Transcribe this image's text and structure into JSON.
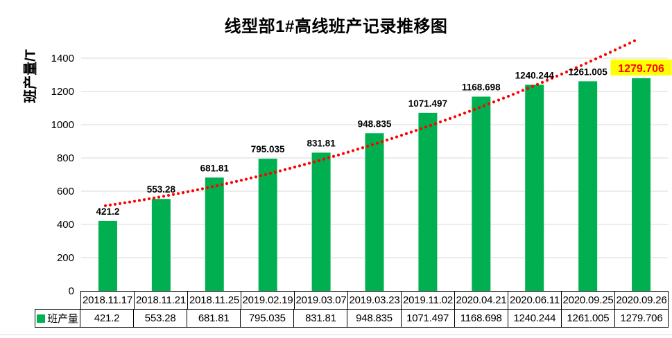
{
  "title": "线型部1#高线班产记录推移图",
  "y_axis_title": "班产量/T",
  "legend": {
    "series_label": "班产量"
  },
  "chart_data": {
    "type": "bar",
    "title": "线型部1#高线班产记录推移图",
    "xlabel": "",
    "ylabel": "班产量/T",
    "ylim": [
      0,
      1400
    ],
    "y_ticks": [
      0,
      200,
      400,
      600,
      800,
      1000,
      1200,
      1400
    ],
    "grid": "horizontal",
    "legend_position": "data-table-left",
    "categories": [
      "2018.11.17",
      "2018.11.21",
      "2018.11.25",
      "2019.02.19",
      "2019.03.07",
      "2019.03.23",
      "2019.11.02",
      "2020.04.21",
      "2020.06.11",
      "2020.09.25",
      "2020.09.26"
    ],
    "series": [
      {
        "name": "班产量",
        "color": "#00B050",
        "values": [
          421.2,
          553.28,
          681.81,
          795.035,
          831.81,
          948.835,
          1071.497,
          1168.698,
          1240.244,
          1261.005,
          1279.706
        ]
      }
    ],
    "data_labels": {
      "visible": true,
      "color": "#000000",
      "highlight_last": {
        "background": "#FFFF00",
        "color": "#FF0000"
      }
    },
    "trendline": {
      "type": "polynomial",
      "style": "dotted",
      "color": "#FF0000"
    },
    "colors": {
      "gridline": "#D9D9D9",
      "bar": "#00B050",
      "table_border": "#000000"
    }
  }
}
